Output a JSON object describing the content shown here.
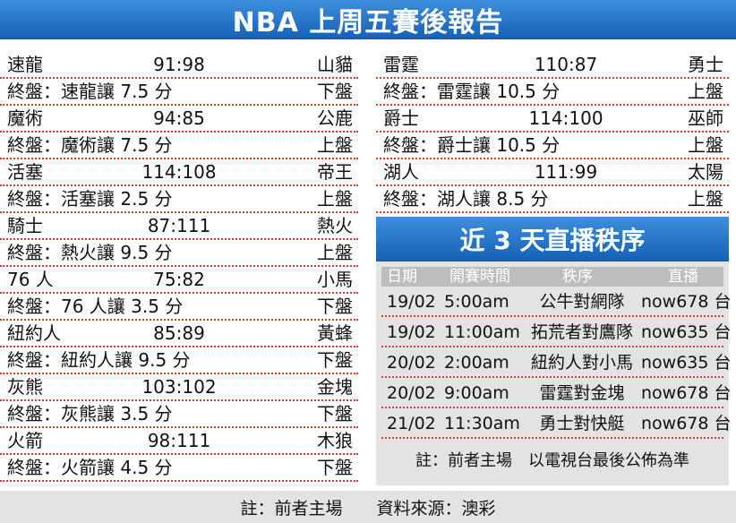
{
  "title": "NBA 上周五賽後報告",
  "games_left": [
    {
      "home": "速龍",
      "score": "91:98",
      "away": "山貓",
      "result": "終盤：速龍讓 7.5 分",
      "outcome": "下盤"
    },
    {
      "home": "魔術",
      "score": "94:85",
      "away": "公鹿",
      "result": "終盤：魔術讓 7.5 分",
      "outcome": "上盤"
    },
    {
      "home": "活塞",
      "score": "114:108",
      "away": "帝王",
      "result": "終盤：活塞讓 2.5 分",
      "outcome": "上盤"
    },
    {
      "home": "騎士",
      "score": "87:111",
      "away": "熱火",
      "result": "終盤：熱火讓 9.5 分",
      "outcome": "上盤"
    },
    {
      "home": "76 人",
      "score": "75:82",
      "away": "小馬",
      "result": "終盤：76 人讓 3.5 分",
      "outcome": "下盤"
    },
    {
      "home": "紐約人",
      "score": "85:89",
      "away": "黃蜂",
      "result": "終盤：紐約人讓 9.5 分",
      "outcome": "下盤"
    },
    {
      "home": "灰熊",
      "score": "103:102",
      "away": "金塊",
      "result": "終盤：灰熊讓 3.5 分",
      "outcome": "下盤"
    },
    {
      "home": "火箭",
      "score": "98:111",
      "away": "木狼",
      "result": "終盤：火箭讓 4.5 分",
      "outcome": "下盤"
    }
  ],
  "games_right": [
    {
      "home": "雷霆",
      "score": "110:87",
      "away": "勇士",
      "result": "終盤：雷霆讓 10.5 分",
      "outcome": "上盤"
    },
    {
      "home": "爵士",
      "score": "114:100",
      "away": "巫師",
      "result": "終盤：爵士讓 10.5 分",
      "outcome": "上盤"
    },
    {
      "home": "湖人",
      "score": "111:99",
      "away": "太陽",
      "result": "終盤：湖人讓 8.5 分",
      "outcome": "上盤"
    }
  ],
  "schedule": {
    "title": "近 3 天直播秩序",
    "headers": {
      "date": "日期",
      "time": "開賽時間",
      "game": "秩序",
      "channel": "直播"
    },
    "rows": [
      {
        "date": "19/02",
        "time": "5:00am",
        "game": "公牛對網隊",
        "channel": "now678 台"
      },
      {
        "date": "19/02",
        "time": "11:00am",
        "game": "拓荒者對鷹隊",
        "channel": "now635 台"
      },
      {
        "date": "20/02",
        "time": "2:00am",
        "game": "紐約人對小馬",
        "channel": "now635 台"
      },
      {
        "date": "20/02",
        "time": "9:00am",
        "game": "雷霆對金塊",
        "channel": "now678 台"
      },
      {
        "date": "21/02",
        "time": "11:30am",
        "game": "勇士對快艇",
        "channel": "now678 台"
      }
    ],
    "note": "註：前者主場　以電視台最後公佈為準"
  },
  "footer": {
    "note": "註：前者主場",
    "source": "資料來源：澳彩"
  },
  "colors": {
    "banner": "#1f6fc7",
    "dotted_rule": "#d93b2f",
    "panel_bg": "#e3e3e3"
  }
}
